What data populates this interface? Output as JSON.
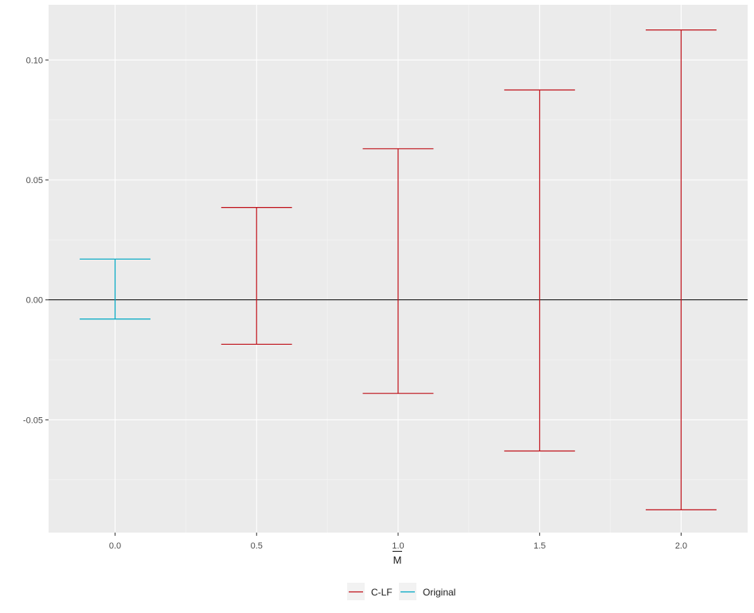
{
  "chart_data": {
    "type": "errorbar",
    "x_ticks": [
      "0.0",
      "0.5",
      "1.0",
      "1.5",
      "2.0"
    ],
    "y_ticks": [
      "-0.05",
      "0.00",
      "0.05",
      "0.10"
    ],
    "xlim": [
      -0.235,
      2.235
    ],
    "ylim": [
      -0.097,
      0.123
    ],
    "xlabel": "M",
    "xlabel_overline": true,
    "hline_y": 0,
    "grid": true,
    "legend_position": "bottom",
    "series": [
      {
        "name": "Original",
        "color": "#00A9C4",
        "points": [
          {
            "x": 0.0,
            "ymin": -0.008,
            "ymax": 0.017
          }
        ]
      },
      {
        "name": "C-LF",
        "color": "#C0141C",
        "points": [
          {
            "x": 0.5,
            "ymin": -0.0185,
            "ymax": 0.0385
          },
          {
            "x": 1.0,
            "ymin": -0.039,
            "ymax": 0.063
          },
          {
            "x": 1.5,
            "ymin": -0.063,
            "ymax": 0.0875
          },
          {
            "x": 2.0,
            "ymin": -0.0875,
            "ymax": 0.1125
          }
        ]
      }
    ],
    "legend": [
      "C-LF",
      "Original"
    ]
  }
}
